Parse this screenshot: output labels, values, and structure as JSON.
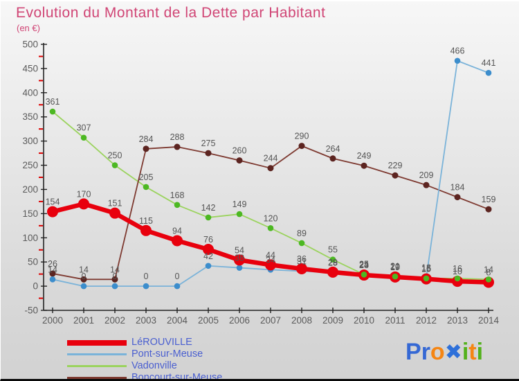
{
  "title": "Evolution du Montant de la Dette par Habitant",
  "subtitle": "(en €)",
  "colors": {
    "title": "#d04575",
    "axis_line": "#222222",
    "axis_text": "#5a5a5a",
    "minor_tick": "#dd0000",
    "point_label": "#555555",
    "legend_text": "#4a5fd0"
  },
  "chart_data": {
    "type": "line",
    "x": [
      2000,
      2001,
      2002,
      2003,
      2004,
      2005,
      2006,
      2007,
      2008,
      2009,
      2010,
      2011,
      2012,
      2013,
      2014
    ],
    "ylim": [
      -50,
      500
    ],
    "ytick_major_step": 50,
    "ytick_minor_step": 25,
    "grid": false,
    "point_labels_visible": true,
    "legend_position": "bottom-left",
    "series": [
      {
        "name": "LéROUVILLE",
        "line_color": "#e8000d",
        "point_color": "#e8000d",
        "line_width": 6.5,
        "point_radius": 8,
        "values": [
          154,
          170,
          151,
          115,
          94,
          76,
          54,
          44,
          36,
          29,
          23,
          19,
          15,
          10,
          8
        ]
      },
      {
        "name": "Pont-sur-Meuse",
        "line_color": "#7ab3d9",
        "point_color": "#3c8dcc",
        "line_width": 1.8,
        "point_radius": 4.3,
        "values": [
          14,
          0,
          0,
          0,
          0,
          42,
          38,
          34,
          31,
          28,
          25,
          21,
          18,
          466,
          441
        ]
      },
      {
        "name": "Vadonville",
        "line_color": "#9bd35e",
        "point_color": "#4cb822",
        "line_width": 1.8,
        "point_radius": 4.3,
        "values": [
          361,
          307,
          250,
          205,
          168,
          142,
          149,
          120,
          89,
          55,
          24,
          20,
          16,
          16,
          14
        ]
      },
      {
        "name": "Boncourt-sur-Meuse",
        "line_color": "#7e3a31",
        "point_color": "#5c2420",
        "line_width": 1.8,
        "point_radius": 4.5,
        "values": [
          26,
          14,
          14,
          284,
          288,
          275,
          260,
          244,
          290,
          264,
          249,
          229,
          209,
          184,
          159
        ]
      }
    ]
  },
  "legend": {
    "items": [
      {
        "label": "LéROUVILLE",
        "swatch_color": "#e8000d",
        "swatch_thickness": 8
      },
      {
        "label": "Pont-sur-Meuse",
        "swatch_color": "#7ab3d9",
        "swatch_thickness": 3
      },
      {
        "label": "Vadonville",
        "swatch_color": "#9bd35e",
        "swatch_thickness": 3
      },
      {
        "label": "Boncourt-sur-Meuse",
        "swatch_color": "#7e3a31",
        "swatch_thickness": 3
      }
    ]
  },
  "logo": {
    "letters": [
      {
        "ch": "P",
        "color": "#3568d4"
      },
      {
        "ch": "r",
        "color": "#3568d4"
      },
      {
        "ch": "o",
        "color": "#f58614"
      },
      {
        "ch": "✖",
        "color": "#2e70d9"
      },
      {
        "ch": "i",
        "color": "#53b11c"
      },
      {
        "ch": "t",
        "color": "#f58614"
      },
      {
        "ch": "i",
        "color": "#53b11c"
      }
    ]
  }
}
